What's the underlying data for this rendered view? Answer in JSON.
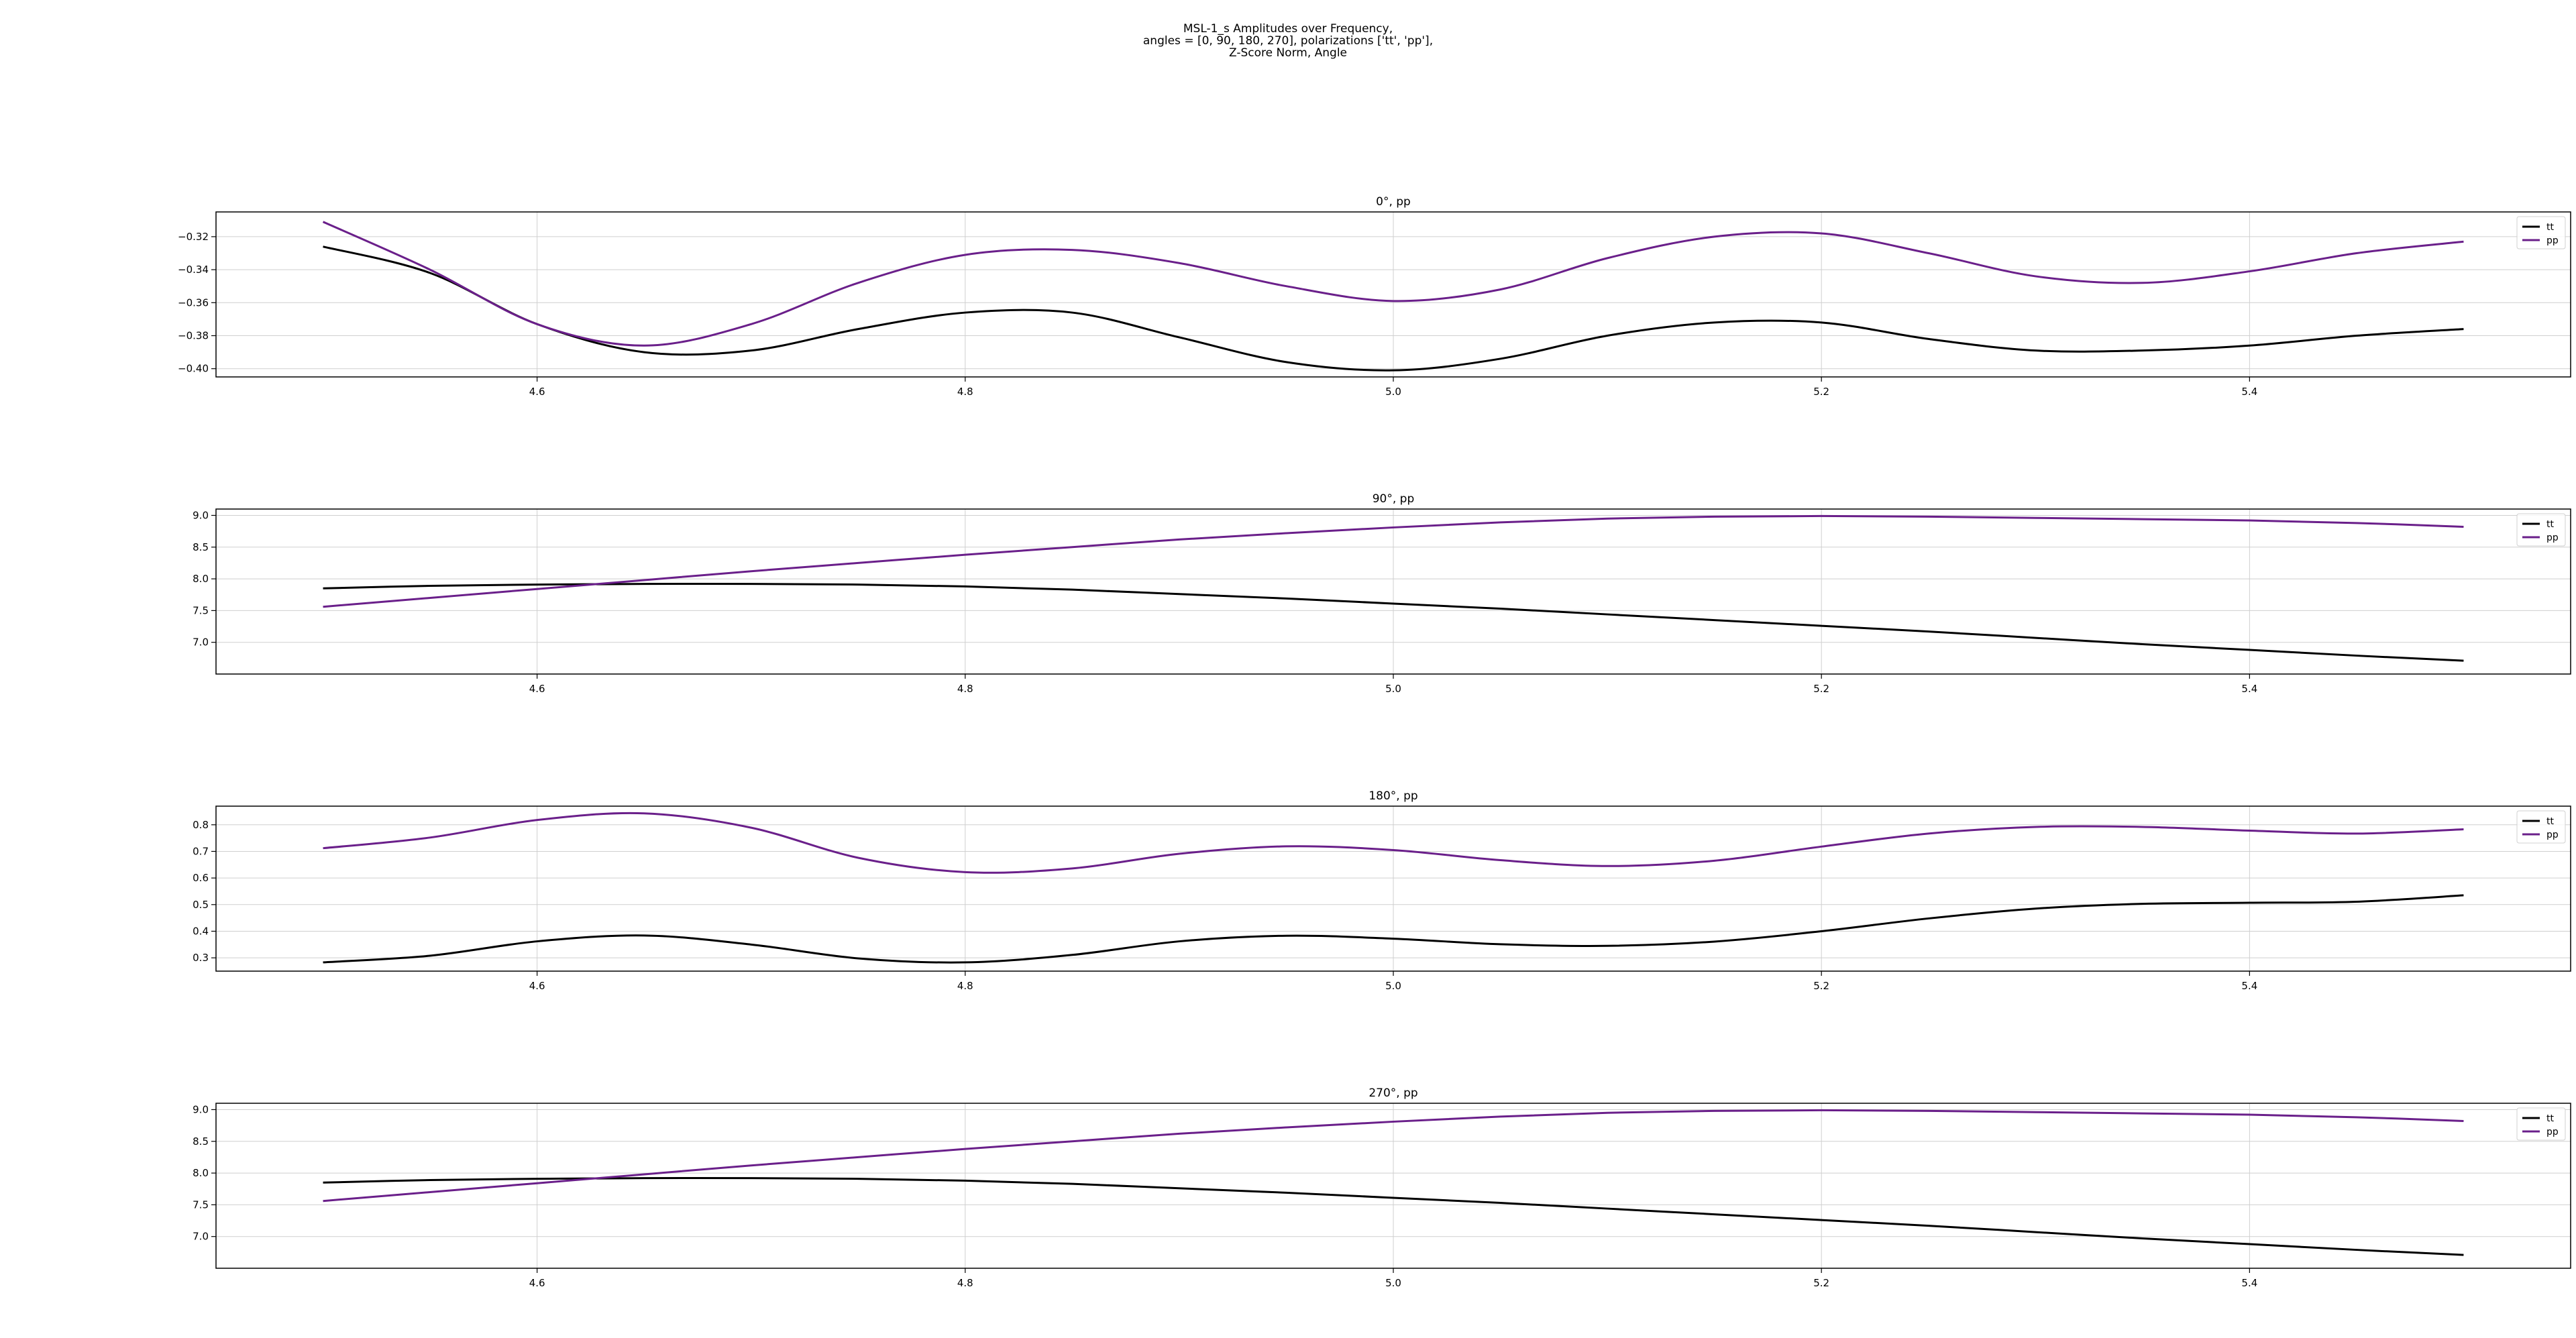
{
  "figure": {
    "title_lines": [
      "MSL-1_s Amplitudes over Frequency,",
      "angles = [0, 90, 180, 270], polarizations ['tt', 'pp'],",
      "Z-Score Norm, Angle"
    ]
  },
  "chart_data": [
    {
      "type": "line",
      "title": "0°, pp",
      "xlabel": "",
      "ylabel": "",
      "xlim": [
        4.45,
        5.55
      ],
      "ylim": [
        -0.405,
        -0.305
      ],
      "xticks": [
        4.6,
        4.8,
        5.0,
        5.2,
        5.4
      ],
      "xtick_labels": [
        "4.6",
        "4.8",
        "5.0",
        "5.2",
        "5.4"
      ],
      "yticks": [
        -0.4,
        -0.38,
        -0.36,
        -0.34,
        -0.32
      ],
      "ytick_labels": [
        "−0.40",
        "−0.38",
        "−0.36",
        "−0.34",
        "−0.32"
      ],
      "grid": true,
      "legend_position": "top-right",
      "series": [
        {
          "name": "tt",
          "color": "#000000",
          "x": [
            4.5,
            4.55,
            4.6,
            4.65,
            4.7,
            4.75,
            4.8,
            4.85,
            4.9,
            4.95,
            5.0,
            5.05,
            5.1,
            5.15,
            5.2,
            5.25,
            5.3,
            5.35,
            5.4,
            5.45,
            5.5
          ],
          "values": [
            -0.326,
            -0.342,
            -0.373,
            -0.39,
            -0.389,
            -0.376,
            -0.366,
            -0.366,
            -0.381,
            -0.396,
            -0.401,
            -0.394,
            -0.38,
            -0.372,
            -0.372,
            -0.382,
            -0.389,
            -0.389,
            -0.386,
            -0.38,
            -0.376
          ]
        },
        {
          "name": "pp",
          "color": "#6a1f8a",
          "x": [
            4.5,
            4.55,
            4.6,
            4.65,
            4.7,
            4.75,
            4.8,
            4.85,
            4.9,
            4.95,
            5.0,
            5.05,
            5.1,
            5.15,
            5.2,
            5.25,
            5.3,
            5.35,
            5.4,
            5.45,
            5.5
          ],
          "values": [
            -0.311,
            -0.34,
            -0.373,
            -0.386,
            -0.373,
            -0.348,
            -0.331,
            -0.328,
            -0.336,
            -0.35,
            -0.359,
            -0.352,
            -0.333,
            -0.32,
            -0.318,
            -0.33,
            -0.344,
            -0.348,
            -0.341,
            -0.33,
            -0.323
          ]
        }
      ]
    },
    {
      "type": "line",
      "title": "90°, pp",
      "xlabel": "",
      "ylabel": "",
      "xlim": [
        4.45,
        5.55
      ],
      "ylim": [
        6.5,
        9.1
      ],
      "xticks": [
        4.6,
        4.8,
        5.0,
        5.2,
        5.4
      ],
      "xtick_labels": [
        "4.6",
        "4.8",
        "5.0",
        "5.2",
        "5.4"
      ],
      "yticks": [
        7.0,
        7.5,
        8.0,
        8.5,
        9.0
      ],
      "ytick_labels": [
        "7.0",
        "7.5",
        "8.0",
        "8.5",
        "9.0"
      ],
      "grid": true,
      "legend_position": "top-right",
      "series": [
        {
          "name": "tt",
          "color": "#000000",
          "x": [
            4.5,
            4.55,
            4.6,
            4.65,
            4.7,
            4.75,
            4.8,
            4.85,
            4.9,
            4.95,
            5.0,
            5.05,
            5.1,
            5.15,
            5.2,
            5.25,
            5.3,
            5.35,
            5.4,
            5.45,
            5.5
          ],
          "values": [
            7.85,
            7.89,
            7.91,
            7.92,
            7.92,
            7.91,
            7.88,
            7.83,
            7.76,
            7.69,
            7.61,
            7.53,
            7.44,
            7.35,
            7.26,
            7.17,
            7.07,
            6.97,
            6.88,
            6.79,
            6.71
          ]
        },
        {
          "name": "pp",
          "color": "#6a1f8a",
          "x": [
            4.5,
            4.55,
            4.6,
            4.65,
            4.7,
            4.75,
            4.8,
            4.85,
            4.9,
            4.95,
            5.0,
            5.05,
            5.1,
            5.15,
            5.2,
            5.25,
            5.3,
            5.35,
            5.4,
            5.45,
            5.5
          ],
          "values": [
            7.56,
            7.7,
            7.84,
            7.98,
            8.12,
            8.25,
            8.38,
            8.5,
            8.62,
            8.72,
            8.81,
            8.89,
            8.95,
            8.98,
            8.99,
            8.98,
            8.96,
            8.94,
            8.92,
            8.88,
            8.82
          ]
        }
      ]
    },
    {
      "type": "line",
      "title": "180°, pp",
      "xlabel": "",
      "ylabel": "",
      "xlim": [
        4.45,
        5.55
      ],
      "ylim": [
        0.25,
        0.87
      ],
      "xticks": [
        4.6,
        4.8,
        5.0,
        5.2,
        5.4
      ],
      "xtick_labels": [
        "4.6",
        "4.8",
        "5.0",
        "5.2",
        "5.4"
      ],
      "yticks": [
        0.3,
        0.4,
        0.5,
        0.6,
        0.7,
        0.8
      ],
      "ytick_labels": [
        "0.3",
        "0.4",
        "0.5",
        "0.6",
        "0.7",
        "0.8"
      ],
      "grid": true,
      "legend_position": "top-right",
      "series": [
        {
          "name": "tt",
          "color": "#000000",
          "x": [
            4.5,
            4.55,
            4.6,
            4.65,
            4.7,
            4.75,
            4.8,
            4.85,
            4.9,
            4.95,
            5.0,
            5.05,
            5.1,
            5.15,
            5.2,
            5.25,
            5.3,
            5.35,
            5.4,
            5.45,
            5.5
          ],
          "values": [
            0.283,
            0.308,
            0.362,
            0.384,
            0.35,
            0.298,
            0.283,
            0.311,
            0.362,
            0.383,
            0.372,
            0.351,
            0.345,
            0.361,
            0.4,
            0.448,
            0.485,
            0.503,
            0.507,
            0.511,
            0.535
          ]
        },
        {
          "name": "pp",
          "color": "#6a1f8a",
          "x": [
            4.5,
            4.55,
            4.6,
            4.65,
            4.7,
            4.75,
            4.8,
            4.85,
            4.9,
            4.95,
            5.0,
            5.05,
            5.1,
            5.15,
            5.2,
            5.25,
            5.3,
            5.35,
            5.4,
            5.45,
            5.5
          ],
          "values": [
            0.712,
            0.752,
            0.818,
            0.843,
            0.789,
            0.676,
            0.622,
            0.636,
            0.691,
            0.719,
            0.705,
            0.667,
            0.645,
            0.665,
            0.718,
            0.767,
            0.792,
            0.792,
            0.778,
            0.767,
            0.783
          ]
        }
      ]
    },
    {
      "type": "line",
      "title": "270°, pp",
      "xlabel": "",
      "ylabel": "",
      "xlim": [
        4.45,
        5.55
      ],
      "ylim": [
        6.5,
        9.1
      ],
      "xticks": [
        4.6,
        4.8,
        5.0,
        5.2,
        5.4
      ],
      "xtick_labels": [
        "4.6",
        "4.8",
        "5.0",
        "5.2",
        "5.4"
      ],
      "yticks": [
        7.0,
        7.5,
        8.0,
        8.5,
        9.0
      ],
      "ytick_labels": [
        "7.0",
        "7.5",
        "8.0",
        "8.5",
        "9.0"
      ],
      "grid": true,
      "legend_position": "top-right",
      "series": [
        {
          "name": "tt",
          "color": "#000000",
          "x": [
            4.5,
            4.55,
            4.6,
            4.65,
            4.7,
            4.75,
            4.8,
            4.85,
            4.9,
            4.95,
            5.0,
            5.05,
            5.1,
            5.15,
            5.2,
            5.25,
            5.3,
            5.35,
            5.4,
            5.45,
            5.5
          ],
          "values": [
            7.85,
            7.89,
            7.91,
            7.92,
            7.92,
            7.91,
            7.88,
            7.83,
            7.76,
            7.69,
            7.61,
            7.53,
            7.44,
            7.35,
            7.26,
            7.17,
            7.07,
            6.97,
            6.88,
            6.79,
            6.71
          ]
        },
        {
          "name": "pp",
          "color": "#6a1f8a",
          "x": [
            4.5,
            4.55,
            4.6,
            4.65,
            4.7,
            4.75,
            4.8,
            4.85,
            4.9,
            4.95,
            5.0,
            5.05,
            5.1,
            5.15,
            5.2,
            5.25,
            5.3,
            5.35,
            5.4,
            5.45,
            5.5
          ],
          "values": [
            7.56,
            7.7,
            7.84,
            7.98,
            8.12,
            8.25,
            8.38,
            8.5,
            8.62,
            8.72,
            8.81,
            8.89,
            8.95,
            8.98,
            8.99,
            8.98,
            8.96,
            8.94,
            8.92,
            8.88,
            8.82
          ]
        }
      ]
    }
  ]
}
